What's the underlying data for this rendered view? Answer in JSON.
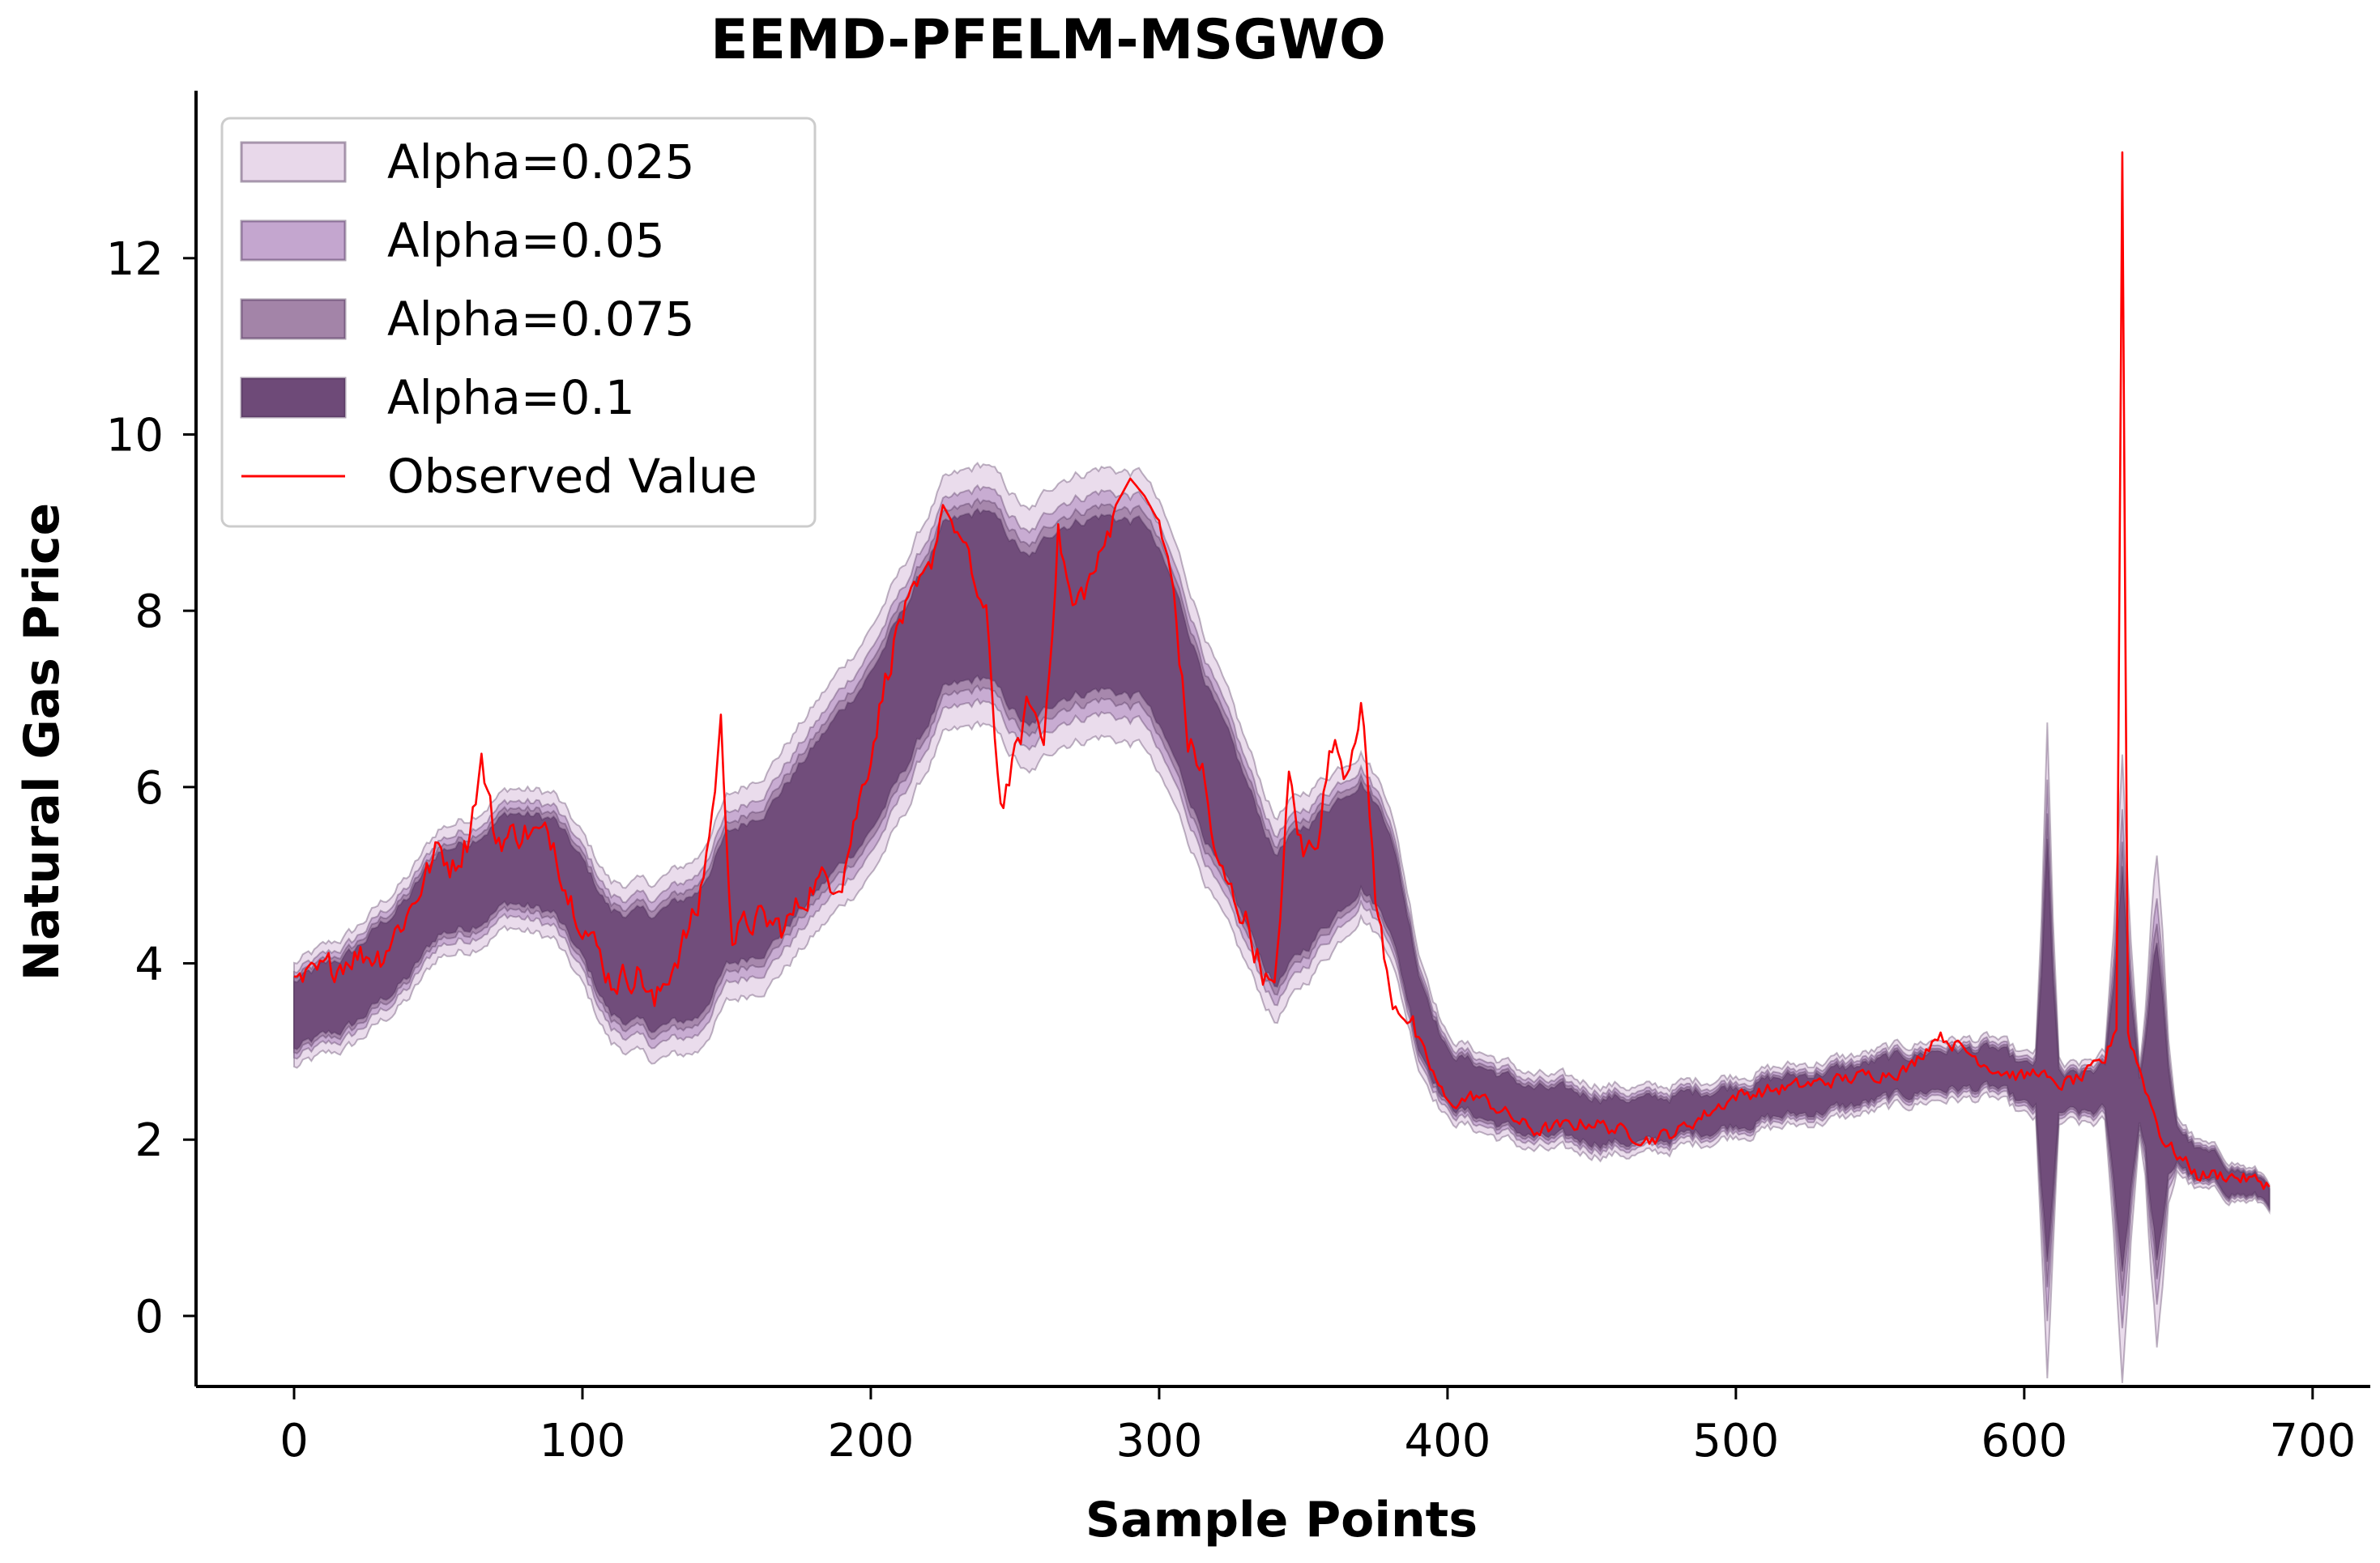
{
  "chart_data": {
    "type": "area",
    "title": "EEMD-PFELM-MSGWO",
    "xlabel": "Sample Points",
    "ylabel": "Natural Gas Price",
    "xlim": [
      -34,
      720
    ],
    "ylim": [
      -0.8,
      13.9
    ],
    "xticks": [
      0,
      100,
      200,
      300,
      400,
      500,
      600,
      700
    ],
    "yticks": [
      0,
      2,
      4,
      6,
      8,
      10,
      12
    ],
    "legend_position": "top-left",
    "grid": false,
    "colors": {
      "alpha_0025": "#e8d8ea",
      "alpha_005": "#c4a6cf",
      "alpha_0075": "#a384a8",
      "alpha_01": "#6e4a78",
      "band_edge": "#4a2f55",
      "observed": "#ff0000"
    },
    "series": [
      {
        "name": "Alpha=0.025",
        "kind": "band",
        "halfwidth_factor": 1.55
      },
      {
        "name": "Alpha=0.05",
        "kind": "band",
        "halfwidth_factor": 1.28
      },
      {
        "name": "Alpha=0.075",
        "kind": "band",
        "halfwidth_factor": 1.12
      },
      {
        "name": "Alpha=0.1",
        "kind": "band",
        "halfwidth_factor": 1.0
      },
      {
        "name": "Observed Value",
        "kind": "line"
      }
    ],
    "band_center": {
      "x": [
        0,
        20,
        40,
        50,
        60,
        75,
        90,
        100,
        110,
        125,
        140,
        150,
        165,
        180,
        200,
        210,
        225,
        240,
        255,
        265,
        280,
        295,
        305,
        320,
        340,
        355,
        370,
        380,
        390,
        400,
        430,
        470,
        500,
        540,
        570,
        590,
        600,
        606,
        608,
        610,
        612,
        614,
        620,
        630,
        634,
        636,
        640,
        645,
        647,
        649,
        652,
        660,
        685
      ],
      "y": [
        3.4,
        3.7,
        4.3,
        4.8,
        4.9,
        5.2,
        5.1,
        4.6,
        4.0,
        3.9,
        4.1,
        4.7,
        5.0,
        5.6,
        6.4,
        7.0,
        8.0,
        8.2,
        7.6,
        8.0,
        8.1,
        8.0,
        7.3,
        6.0,
        4.5,
        5.0,
        5.5,
        5.0,
        3.5,
        2.7,
        2.3,
        2.2,
        2.4,
        2.6,
        2.8,
        2.8,
        2.6,
        2.6,
        3.0,
        2.6,
        2.5,
        2.5,
        2.5,
        2.6,
        2.8,
        2.6,
        2.5,
        2.5,
        2.4,
        2.2,
        2.0,
        1.7,
        1.4
      ]
    },
    "band_halfwidth": {
      "x": [
        0,
        40,
        100,
        150,
        200,
        240,
        300,
        340,
        380,
        400,
        500,
        600,
        604,
        606,
        608,
        610,
        612,
        614,
        628,
        631,
        634,
        637,
        640,
        642,
        644,
        646,
        648,
        650,
        653,
        685
      ],
      "y": [
        0.38,
        0.45,
        0.55,
        0.75,
        0.9,
        0.95,
        1.0,
        0.75,
        0.55,
        0.3,
        0.22,
        0.22,
        0.25,
        1.2,
        2.4,
        1.2,
        0.25,
        0.2,
        0.25,
        1.1,
        2.3,
        1.1,
        0.25,
        0.6,
        1.3,
        1.8,
        1.3,
        0.6,
        0.2,
        0.1
      ]
    },
    "observed_anchors": {
      "x": [
        0,
        10,
        20,
        30,
        40,
        50,
        55,
        60,
        65,
        70,
        80,
        90,
        95,
        100,
        110,
        120,
        125,
        130,
        140,
        145,
        148,
        152,
        160,
        170,
        180,
        190,
        200,
        205,
        210,
        215,
        220,
        225,
        230,
        240,
        245,
        250,
        255,
        260,
        265,
        270,
        280,
        285,
        290,
        295,
        300,
        305,
        310,
        315,
        320,
        330,
        335,
        340,
        345,
        350,
        355,
        360,
        365,
        370,
        375,
        380,
        385,
        390,
        400,
        410,
        430,
        450,
        470,
        480,
        500,
        520,
        540,
        560,
        570,
        580,
        590,
        600,
        605,
        610,
        620,
        628,
        632,
        634,
        636,
        640,
        648,
        660,
        670,
        685
      ],
      "y": [
        3.7,
        3.9,
        4.1,
        4.1,
        4.6,
        5.3,
        5.1,
        5.4,
        6.3,
        5.4,
        5.5,
        5.4,
        4.8,
        4.5,
        3.8,
        3.9,
        3.5,
        3.9,
        4.6,
        5.7,
        6.7,
        4.3,
        4.5,
        4.4,
        4.9,
        5.0,
        6.4,
        7.2,
        7.9,
        8.1,
        8.4,
        9.2,
        8.9,
        7.9,
        5.8,
        6.3,
        7.0,
        6.5,
        8.9,
        8.0,
        8.6,
        9.2,
        9.5,
        9.3,
        9.0,
        8.2,
        6.5,
        6.2,
        5.1,
        4.5,
        4.0,
        3.6,
        6.1,
        5.2,
        5.5,
        6.5,
        6.2,
        7.0,
        4.8,
        3.6,
        3.5,
        3.1,
        2.4,
        2.5,
        2.1,
        2.2,
        2.0,
        2.1,
        2.5,
        2.6,
        2.7,
        2.8,
        3.2,
        3.0,
        2.8,
        2.7,
        2.8,
        2.6,
        2.7,
        2.9,
        3.3,
        13.2,
        3.2,
        2.8,
        2.0,
        1.6,
        1.6,
        1.5
      ]
    }
  }
}
